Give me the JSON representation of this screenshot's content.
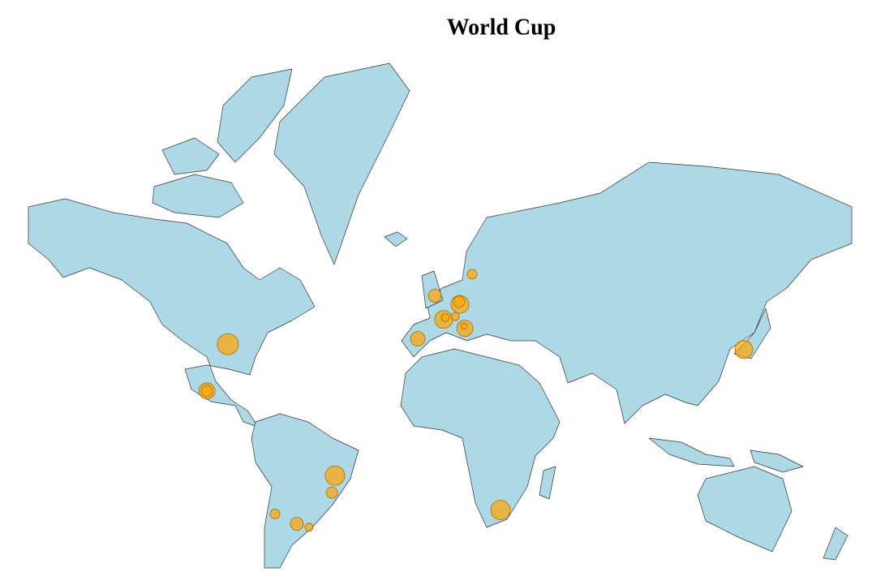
{
  "title": "World Cup",
  "points": [
    {
      "lon": -89.6,
      "lat": 37.4,
      "size": 13
    },
    {
      "lon": -98.9,
      "lat": 19.3,
      "size": 10
    },
    {
      "lon": -98.9,
      "lat": 19.3,
      "size": 7
    },
    {
      "lon": -42.1,
      "lat": -17.6,
      "size": 12
    },
    {
      "lon": -43.5,
      "lat": -24.6,
      "size": 7
    },
    {
      "lon": -68.7,
      "lat": -32.9,
      "size": 6
    },
    {
      "lon": -59.0,
      "lat": -36.5,
      "size": 8
    },
    {
      "lon": -53.6,
      "lat": -37.7,
      "size": 5
    },
    {
      "lon": 31.3,
      "lat": -31.4,
      "size": 12
    },
    {
      "lon": 139.2,
      "lat": 35.5,
      "size": 11
    },
    {
      "lon": -5.4,
      "lat": 39.3,
      "size": 9
    },
    {
      "lon": 6.1,
      "lat": 45.6,
      "size": 11
    },
    {
      "lon": 6.8,
      "lat": 46.2,
      "size": 5
    },
    {
      "lon": 2.2,
      "lat": 52.5,
      "size": 8
    },
    {
      "lon": 13.3,
      "lat": 50.1,
      "size": 11
    },
    {
      "lon": 12.9,
      "lat": 50.8,
      "size": 7
    },
    {
      "lon": 11.2,
      "lat": 46.5,
      "size": 5
    },
    {
      "lon": 15.5,
      "lat": 42.8,
      "size": 10
    },
    {
      "lon": 15.1,
      "lat": 43.5,
      "size": 4
    },
    {
      "lon": 18.7,
      "lat": 57.9,
      "size": 6
    }
  ]
}
